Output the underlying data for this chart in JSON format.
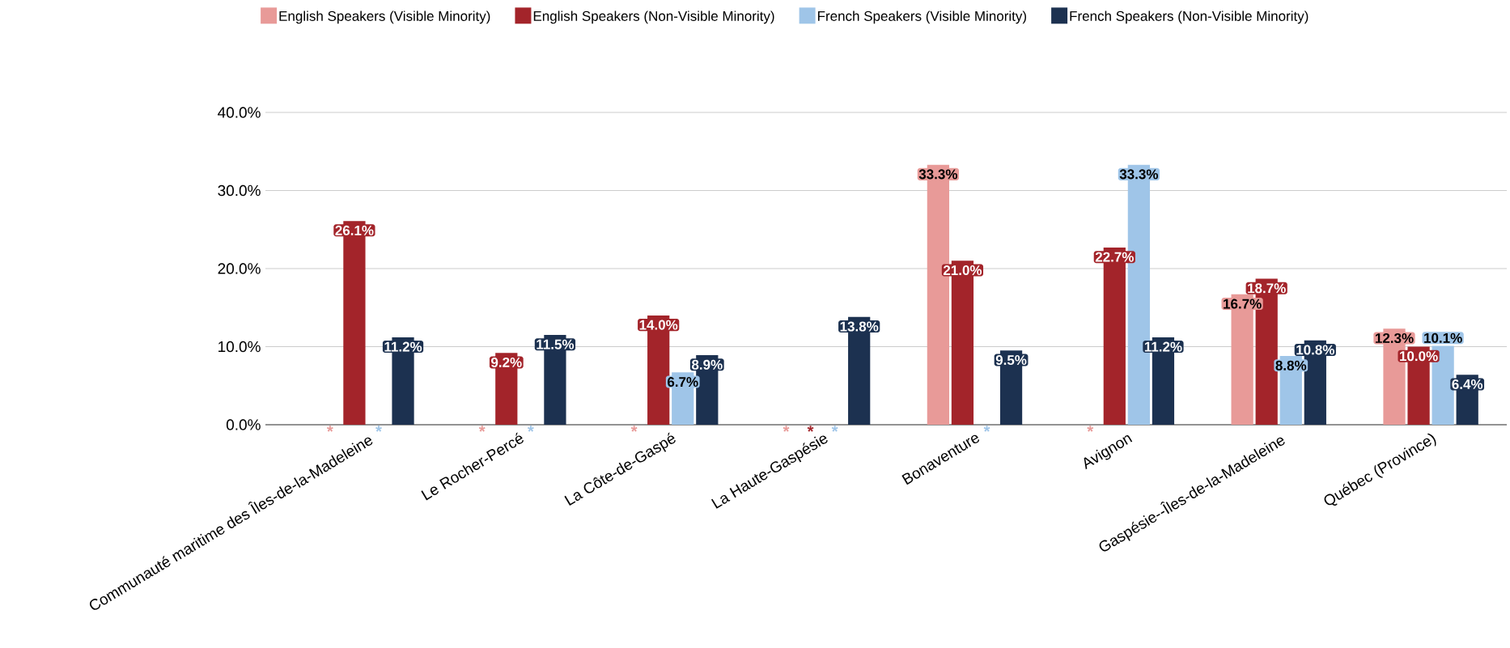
{
  "chart_data": {
    "type": "bar",
    "categories": [
      "Communauté maritime des Îles-de-la-Madeleine",
      "Le Rocher-Percé",
      "La Côte-de-Gaspé",
      "La Haute-Gaspésie",
      "Bonaventure",
      "Avignon",
      "Gaspésie--Îles-de-la-Madeleine",
      "Québec (Province)"
    ],
    "series": [
      {
        "name": "English Speakers (Visible Minority)",
        "color": "#e89a98",
        "values": [
          null,
          null,
          null,
          null,
          33.3,
          null,
          16.7,
          12.3
        ],
        "value_labels": [
          "*",
          "*",
          "*",
          "*",
          "33.3%",
          "*",
          "16.7%",
          "12.3%"
        ]
      },
      {
        "name": "English Speakers (Non-Visible Minority)",
        "color": "#a3242a",
        "values": [
          26.1,
          9.2,
          14.0,
          null,
          21.0,
          22.7,
          18.7,
          10.0
        ],
        "value_labels": [
          "26.1%",
          "9.2%",
          "14.0%",
          "*",
          "21.0%",
          "22.7%",
          "18.7%",
          "10.0%"
        ]
      },
      {
        "name": "French Speakers (Visible Minority)",
        "color": "#9fc5e8",
        "values": [
          null,
          null,
          6.7,
          null,
          null,
          33.3,
          8.8,
          10.1
        ],
        "value_labels": [
          "*",
          "*",
          "6.7%",
          "*",
          "*",
          "33.3%",
          "8.8%",
          "10.1%"
        ]
      },
      {
        "name": "French Speakers (Non-Visible Minority)",
        "color": "#1c3150",
        "values": [
          11.2,
          11.5,
          8.9,
          13.8,
          9.5,
          11.2,
          10.8,
          6.4
        ],
        "value_labels": [
          "11.2%",
          "11.5%",
          "8.9%",
          "13.8%",
          "9.5%",
          "11.2%",
          "10.8%",
          "6.4%"
        ]
      }
    ],
    "ylim": [
      0,
      40
    ],
    "yticks": [
      {
        "value": 0,
        "label": "0.0%"
      },
      {
        "value": 10,
        "label": "10.0%"
      },
      {
        "value": 20,
        "label": "20.0%"
      },
      {
        "value": 30,
        "label": "30.0%"
      },
      {
        "value": 40,
        "label": "40.0%"
      }
    ],
    "grid": "y",
    "legend": "top"
  }
}
